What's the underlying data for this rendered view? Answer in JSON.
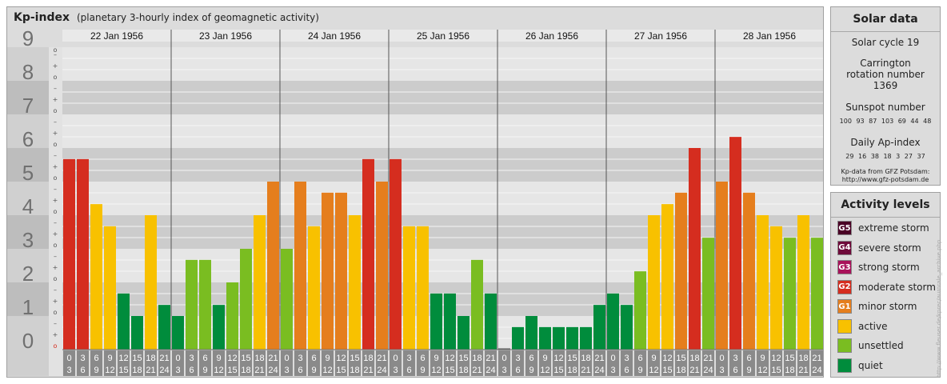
{
  "header": {
    "title": "Kp-index",
    "subtitle": "(planetary 3-hourly index of geomagnetic activity)"
  },
  "chart_data": {
    "type": "bar",
    "days": [
      "22 Jan 1956",
      "23 Jan 1956",
      "24 Jan 1956",
      "25 Jan 1956",
      "26 Jan 1956",
      "27 Jan 1956",
      "28 Jan 1956"
    ],
    "interval_start": [
      "0",
      "3",
      "6",
      "9",
      "12",
      "15",
      "18",
      "21"
    ],
    "interval_end": [
      "3",
      "6",
      "9",
      "12",
      "15",
      "18",
      "21",
      "24"
    ],
    "values": [
      [
        5.67,
        5.67,
        4.33,
        3.67,
        1.67,
        1.0,
        4.0,
        1.33
      ],
      [
        1.0,
        2.67,
        2.67,
        1.33,
        2.0,
        3.0,
        4.0,
        5.0
      ],
      [
        3.0,
        5.0,
        3.67,
        4.67,
        4.67,
        4.0,
        5.67,
        5.0
      ],
      [
        5.67,
        3.67,
        3.67,
        1.67,
        1.67,
        1.0,
        2.67,
        1.67
      ],
      [
        0.0,
        0.67,
        1.0,
        0.67,
        0.67,
        0.67,
        0.67,
        1.33
      ],
      [
        1.67,
        1.33,
        2.33,
        4.0,
        4.33,
        4.67,
        6.0,
        3.33
      ],
      [
        5.0,
        6.33,
        4.67,
        4.0,
        3.67,
        3.33,
        4.0,
        3.33
      ]
    ],
    "y_ticks": [
      "0",
      "1",
      "2",
      "3",
      "4",
      "5",
      "6",
      "7",
      "8",
      "9"
    ],
    "ylim": [
      0,
      9
    ],
    "sub_markers": [
      "o",
      "+",
      "–"
    ],
    "colors": {
      "extreme": "#4a0025",
      "severe": "#6e0a3a",
      "strong": "#a8125a",
      "moderate": "#d52d1f",
      "minor": "#e57e1d",
      "active": "#f8c100",
      "unsettled": "#7abd21",
      "quiet": "#008c3c"
    }
  },
  "solar": {
    "title": "Solar data",
    "cycle": "Solar cycle 19",
    "carrington": "Carrington rotation number 1369",
    "sunspot_label": "Sunspot number",
    "sunspot_values": "100 93 87 103 69 44 48",
    "ap_label": "Daily Ap-index",
    "ap_values": "29 16 38 18 3 27 37",
    "credit_line1": "Kp-data from GFZ Potsdam:",
    "credit_line2": "http://www.gfz-potsdam.de"
  },
  "activity": {
    "title": "Activity levels",
    "levels": [
      {
        "code": "G5",
        "label": "extreme storm",
        "color": "#4a0025"
      },
      {
        "code": "G4",
        "label": "severe storm",
        "color": "#6e0a3a"
      },
      {
        "code": "G3",
        "label": "strong storm",
        "color": "#a8125a"
      },
      {
        "code": "G2",
        "label": "moderate storm",
        "color": "#d52d1f"
      },
      {
        "code": "G1",
        "label": "minor storm",
        "color": "#e57e1d"
      },
      {
        "code": "",
        "label": "active",
        "color": "#f8c100"
      },
      {
        "code": "",
        "label": "unsettled",
        "color": "#7abd21"
      },
      {
        "code": "",
        "label": "quiet",
        "color": "#008c3c"
      }
    ]
  },
  "side_url": "http://www.fleuser.de/kprec/aurorale_archive.php"
}
